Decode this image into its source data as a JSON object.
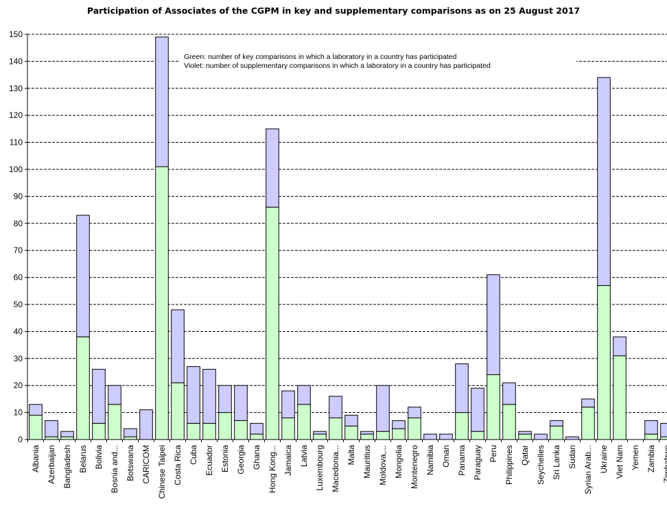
{
  "chart_data": {
    "type": "bar",
    "stacked": true,
    "title": "Participation of Associates of the CGPM in key and supplementary comparisons as on 25 August 2017",
    "xlabel": "",
    "ylabel": "",
    "ylim": [
      0,
      150
    ],
    "yticks": [
      0,
      10,
      20,
      30,
      40,
      50,
      60,
      70,
      80,
      90,
      100,
      110,
      120,
      130,
      140,
      150
    ],
    "grid": "horizontal dashed",
    "legend_placement": "top-center",
    "annotations": [
      "Green: number of key comparisons in which a laboratory in a country has participated",
      "Violet: number of supplementary comparisons in which a laboratory in a country has participated"
    ],
    "categories": [
      "Albania",
      "Azerbaijan",
      "Bangladesh",
      "Belarus",
      "Bolivia",
      "Bosnia and...",
      "Botswana",
      "CARICOM",
      "Chinese Taipei",
      "Costa Rica",
      "Cuba",
      "Ecuador",
      "Estonia",
      "Georgia",
      "Ghana",
      "Hong Kong...",
      "Jamaica",
      "Latvia",
      "Luxembourg",
      "Macedonia...",
      "Malta",
      "Mauritius",
      "Moldova,...",
      "Mongolia",
      "Montenegro",
      "Namibia",
      "Oman",
      "Panama",
      "Paraguay",
      "Peru",
      "Philippines",
      "Qatar",
      "Seychelles",
      "Sri Lanka",
      "Sudan",
      "Syrian Arab...",
      "Ukraine",
      "Viet Nam",
      "Yemen",
      "Zambia",
      "Zimbabwe"
    ],
    "series": [
      {
        "name": "Green",
        "color": "#ccffcc",
        "values": [
          9,
          1,
          1,
          38,
          6,
          13,
          1,
          0,
          101,
          21,
          6,
          6,
          10,
          7,
          2,
          86,
          8,
          13,
          2,
          8,
          5,
          2,
          3,
          4,
          8,
          0,
          0,
          10,
          3,
          24,
          13,
          2,
          0,
          5,
          0,
          12,
          57,
          31,
          0,
          2,
          1
        ]
      },
      {
        "name": "Violet",
        "color": "#ccccff",
        "values": [
          4,
          6,
          2,
          45,
          20,
          7,
          3,
          11,
          48,
          27,
          21,
          20,
          10,
          13,
          4,
          29,
          10,
          7,
          1,
          8,
          4,
          1,
          17,
          3,
          4,
          2,
          2,
          18,
          16,
          37,
          8,
          1,
          2,
          2,
          1,
          3,
          77,
          7,
          0,
          5,
          5
        ]
      }
    ]
  }
}
